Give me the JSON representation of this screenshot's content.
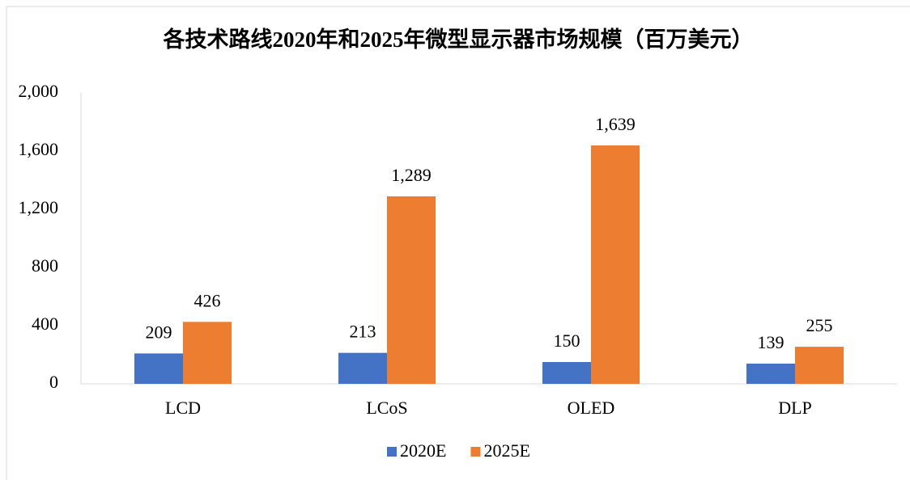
{
  "chart_data": {
    "type": "bar",
    "title": "各技术路线2020年和2025年微型显示器市场规模（百万美元）",
    "categories": [
      "LCD",
      "LCoS",
      "OLED",
      "DLP"
    ],
    "series": [
      {
        "name": "2020E",
        "color": "#4472c4",
        "values": [
          209,
          213,
          150,
          139
        ],
        "value_labels": [
          "209",
          "213",
          "150",
          "139"
        ]
      },
      {
        "name": "2025E",
        "color": "#ed7d31",
        "values": [
          426,
          1289,
          1639,
          255
        ],
        "value_labels": [
          "426",
          "1,289",
          "1,639",
          "255"
        ]
      }
    ],
    "ylim": [
      0,
      2000
    ],
    "yticks": [
      0,
      400,
      800,
      {
        "value": 1200,
        "label": "1,200"
      },
      {
        "value": 1600,
        "label": "1,600"
      },
      {
        "value": 2000,
        "label": "2,000"
      }
    ],
    "grid": false,
    "legend": "bottom"
  }
}
